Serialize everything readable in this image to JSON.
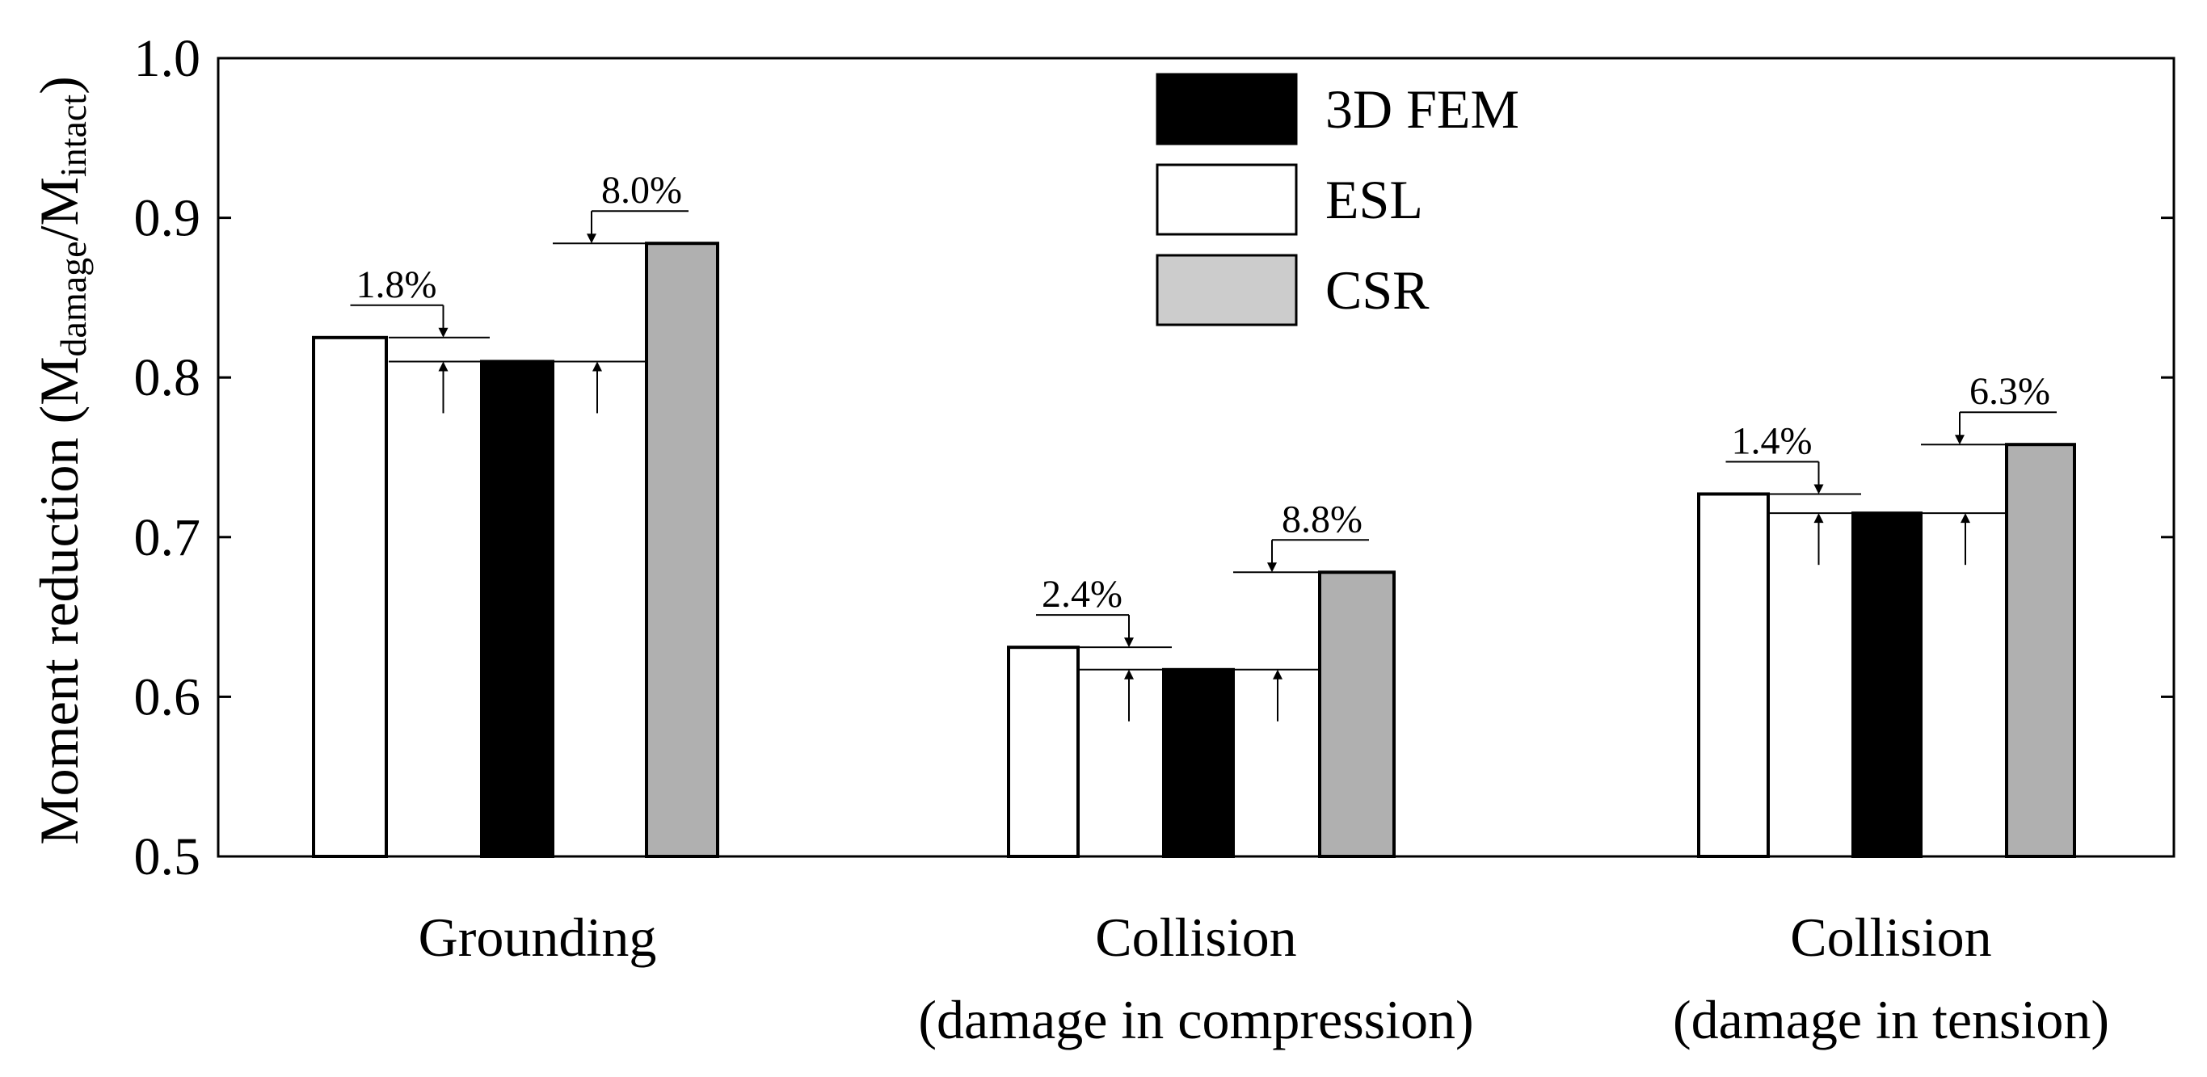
{
  "chart_data": {
    "type": "bar",
    "title": "",
    "xlabel": "",
    "ylabel": {
      "main": "Moment reduction (M",
      "sub1": "damage",
      "slash": "/M",
      "sub2": "intact",
      "close": ")"
    },
    "ylim": [
      0.5,
      1.0
    ],
    "yticks": [
      "0.5",
      "0.6",
      "0.7",
      "0.8",
      "0.9",
      "1.0"
    ],
    "grid": false,
    "legend_position": "top-center",
    "categories": [
      {
        "line1": "Grounding",
        "line2": ""
      },
      {
        "line1": "Collision",
        "line2": "(damage in compression)"
      },
      {
        "line1": "Collision",
        "line2": "(damage in tension)"
      }
    ],
    "series": [
      {
        "name": "ESL",
        "color": "#ffffff",
        "values": [
          0.825,
          0.631,
          0.727
        ]
      },
      {
        "name": "3D FEM",
        "color": "#000000",
        "values": [
          0.81,
          0.617,
          0.715
        ]
      },
      {
        "name": "CSR",
        "color": "#b0b0b0",
        "values": [
          0.884,
          0.678,
          0.758
        ]
      }
    ],
    "legend": [
      {
        "name": "3D FEM",
        "color": "#000000"
      },
      {
        "name": "ESL",
        "color": "#ffffff"
      },
      {
        "name": "CSR",
        "color": "#cccccc"
      }
    ],
    "annotations": [
      {
        "category": 0,
        "vs": "ESL",
        "text": "1.8%"
      },
      {
        "category": 0,
        "vs": "CSR",
        "text": "8.0%"
      },
      {
        "category": 1,
        "vs": "ESL",
        "text": "2.4%"
      },
      {
        "category": 1,
        "vs": "CSR",
        "text": "8.8%"
      },
      {
        "category": 2,
        "vs": "ESL",
        "text": "1.4%"
      },
      {
        "category": 2,
        "vs": "CSR",
        "text": "6.3%"
      }
    ]
  }
}
